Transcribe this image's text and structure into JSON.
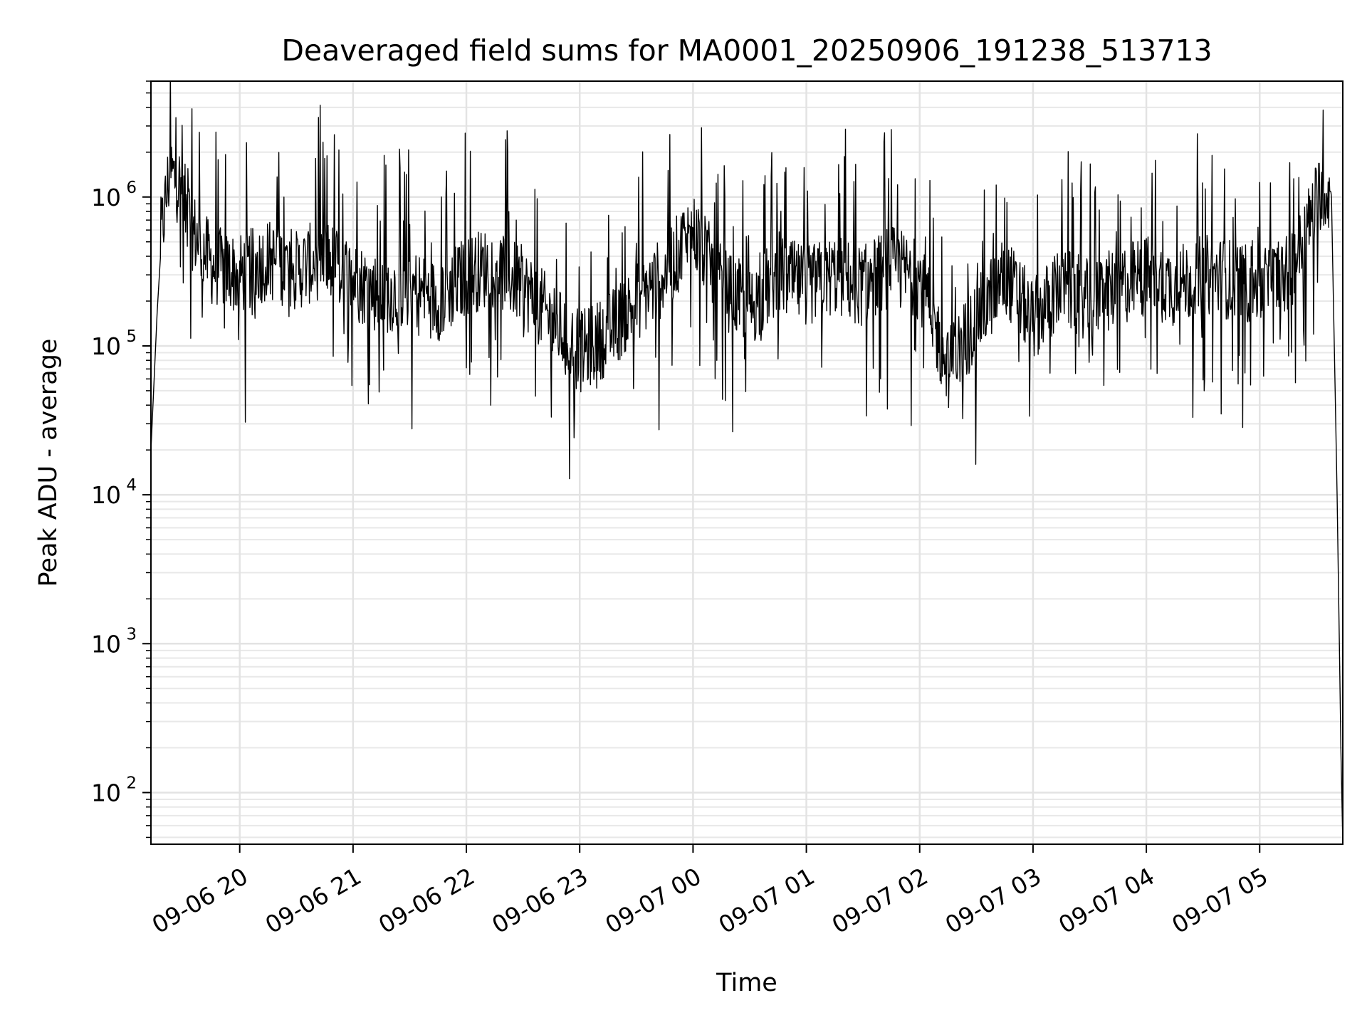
{
  "chart_data": {
    "type": "line",
    "title": "Deaveraged field sums for MA0001_20250906_191238_513713",
    "xlabel": "Time",
    "ylabel": "Peak ADU - average",
    "yscale": "log",
    "ylim": [
      45,
      6000000
    ],
    "xlim": [
      "2025-09-06 19:13",
      "2025-09-07 05:44"
    ],
    "grid": "major and minor, light gray",
    "line_color": "#000000",
    "x_ticks": [
      "09-06 20",
      "09-06 21",
      "09-06 22",
      "09-06 23",
      "09-07 00",
      "09-07 01",
      "09-07 02",
      "09-07 03",
      "09-07 04",
      "09-07 05"
    ],
    "y_ticks": [
      {
        "value": 100,
        "base": "10",
        "exp": "2"
      },
      {
        "value": 1000,
        "base": "10",
        "exp": "3"
      },
      {
        "value": 10000,
        "base": "10",
        "exp": "4"
      },
      {
        "value": 100000,
        "base": "10",
        "exp": "5"
      },
      {
        "value": 1000000,
        "base": "10",
        "exp": "6"
      }
    ],
    "series": [
      {
        "x": [
          "2025-09-06 19:13",
          "2025-09-06 19:18",
          "2025-09-06 19:23",
          "2025-09-06 19:28",
          "2025-09-06 19:35",
          "2025-09-06 19:45",
          "2025-09-06 20:00",
          "2025-09-06 20:15",
          "2025-09-06 20:30",
          "2025-09-06 20:45",
          "2025-09-06 21:00",
          "2025-09-06 21:15",
          "2025-09-06 21:30",
          "2025-09-06 21:45",
          "2025-09-06 22:00",
          "2025-09-06 22:15",
          "2025-09-06 22:30",
          "2025-09-06 22:45",
          "2025-09-06 23:00",
          "2025-09-06 23:15",
          "2025-09-06 23:30",
          "2025-09-06 23:45",
          "2025-09-07 00:00",
          "2025-09-07 00:15",
          "2025-09-07 00:30",
          "2025-09-07 00:45",
          "2025-09-07 01:00",
          "2025-09-07 01:15",
          "2025-09-07 01:30",
          "2025-09-07 01:45",
          "2025-09-07 02:00",
          "2025-09-07 02:15",
          "2025-09-07 02:30",
          "2025-09-07 02:45",
          "2025-09-07 03:00",
          "2025-09-07 03:15",
          "2025-09-07 03:30",
          "2025-09-07 03:45",
          "2025-09-07 04:00",
          "2025-09-07 04:15",
          "2025-09-07 04:30",
          "2025-09-07 04:45",
          "2025-09-07 05:00",
          "2025-09-07 05:15",
          "2025-09-07 05:25",
          "2025-09-07 05:33",
          "2025-09-07 05:38",
          "2025-09-07 05:41",
          "2025-09-07 05:43",
          "2025-09-07 05:44"
        ],
        "y": [
          20000,
          500000,
          1500000,
          1200000,
          600000,
          350000,
          300000,
          380000,
          320000,
          400000,
          280000,
          220000,
          250000,
          200000,
          300000,
          350000,
          250000,
          150000,
          90000,
          120000,
          200000,
          300000,
          600000,
          250000,
          180000,
          300000,
          250000,
          300000,
          250000,
          350000,
          280000,
          70000,
          150000,
          300000,
          150000,
          250000,
          200000,
          250000,
          300000,
          250000,
          300000,
          280000,
          250000,
          300000,
          600000,
          1200000,
          1000000,
          10000,
          200,
          45
        ]
      }
    ]
  }
}
